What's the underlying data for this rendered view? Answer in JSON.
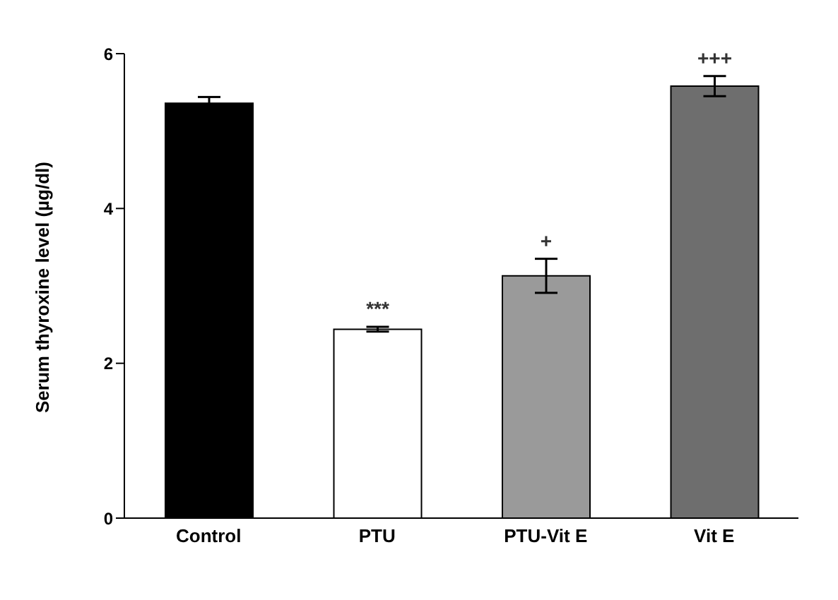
{
  "chart_data": {
    "type": "bar",
    "ylabel": "Serum thyroxine level (µg/dl)",
    "categories": [
      "Control",
      "PTU",
      "PTU-Vit E",
      "Vit E"
    ],
    "values": [
      5.36,
      2.44,
      3.13,
      5.58
    ],
    "errors": [
      0.08,
      0.03,
      0.22,
      0.13
    ],
    "colors": [
      "#000000",
      "#ffffff",
      "#9a9a9a",
      "#6e6e6e"
    ],
    "value_labels": [
      null,
      "***",
      "+",
      "+++"
    ],
    "ylim": [
      0,
      6
    ],
    "yticks": [
      0,
      2,
      4,
      6
    ],
    "grid": false
  }
}
